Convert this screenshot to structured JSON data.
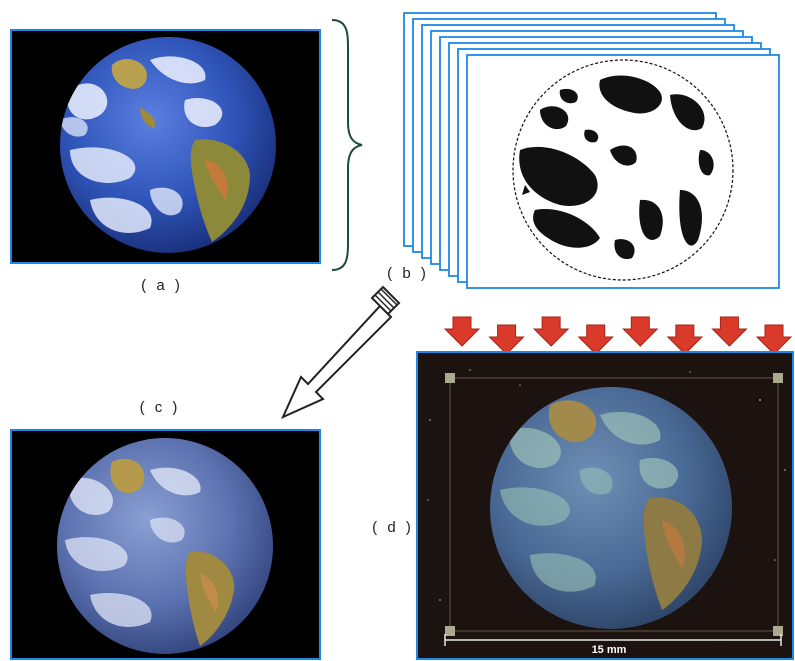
{
  "labels": {
    "a": "( a )",
    "b": "( b )",
    "c": "( c )",
    "d": "( d )"
  },
  "scale_bar": {
    "text": "15 mm"
  },
  "stack": {
    "sheet_count": 8
  },
  "arrows": {
    "count": 8
  },
  "colors": {
    "frame": "#1e88e5",
    "brace": "#1d4a3a",
    "arrow_red": "#d93a2a",
    "arrow_red_dark": "#a82318",
    "ocean": "#2f54b8",
    "cloud": "#eef2ff",
    "land": "#b9a050",
    "bw_ink": "#111111",
    "plate": "#1c1310"
  }
}
